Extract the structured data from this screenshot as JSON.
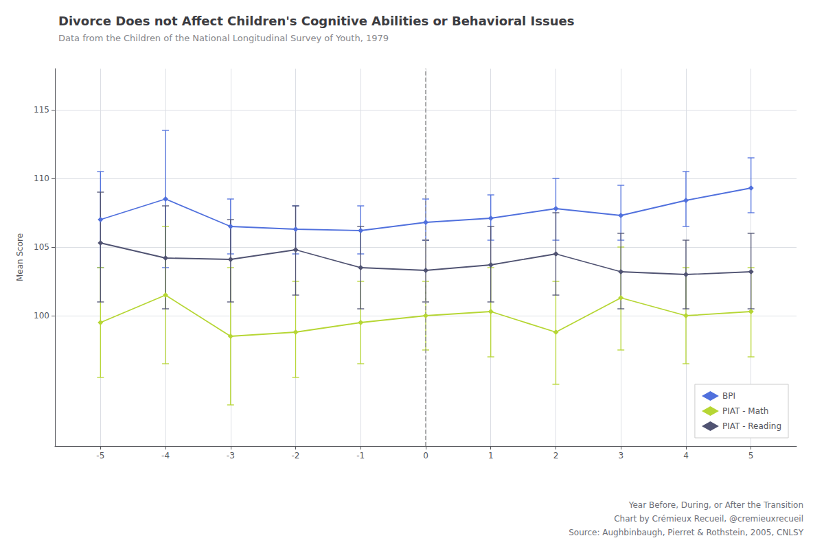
{
  "chart_data": {
    "type": "line",
    "title": "Divorce Does not Affect Children's Cognitive Abilities or Behavioral Issues",
    "subtitle": "Data from the Children of the National Longitudinal Survey of Youth, 1979",
    "ylabel": "Mean Score",
    "annotations": [
      "Year Before, During, or After the Transition",
      "Chart by Crémieux Recueil, @cremieuxrecueil",
      "Source: Aughbinbaugh, Pierret & Rothstein, 2005, CNLSY"
    ],
    "x": [
      -5,
      -4,
      -3,
      -2,
      -1,
      0,
      1,
      2,
      3,
      4,
      5
    ],
    "series": [
      {
        "name": "BPI",
        "values": [
          107.0,
          108.5,
          106.5,
          106.3,
          106.2,
          106.8,
          107.1,
          107.8,
          107.3,
          108.4,
          109.3
        ],
        "lo": [
          103.5,
          103.5,
          104.5,
          104.5,
          104.5,
          105.5,
          105.5,
          105.5,
          105.5,
          106.5,
          107.5
        ],
        "hi": [
          110.5,
          113.5,
          108.5,
          108.0,
          108.0,
          108.5,
          108.8,
          110.0,
          109.5,
          110.5,
          111.5
        ]
      },
      {
        "name": "PIAT - Math",
        "values": [
          99.5,
          101.5,
          98.5,
          98.8,
          99.5,
          100.0,
          100.3,
          98.8,
          101.3,
          100.0,
          100.3
        ],
        "lo": [
          95.5,
          96.5,
          93.5,
          95.5,
          96.5,
          97.5,
          97.0,
          95.0,
          97.5,
          96.5,
          97.0
        ],
        "hi": [
          103.5,
          106.5,
          103.5,
          102.5,
          102.5,
          102.5,
          103.5,
          102.5,
          105.0,
          103.5,
          103.5
        ]
      },
      {
        "name": "PIAT - Reading",
        "values": [
          105.3,
          104.2,
          104.1,
          104.8,
          103.5,
          103.3,
          103.7,
          104.5,
          103.2,
          103.0,
          103.2
        ],
        "lo": [
          101.0,
          100.5,
          101.0,
          101.5,
          100.5,
          101.0,
          101.0,
          101.5,
          100.5,
          100.5,
          100.5
        ],
        "hi": [
          109.0,
          108.0,
          107.0,
          108.0,
          106.5,
          105.5,
          106.5,
          107.5,
          106.0,
          105.5,
          106.0
        ]
      }
    ],
    "reference_lines": [
      {
        "x": 0,
        "line_style": "dashed",
        "color": "#909090"
      }
    ],
    "marker": "diamond",
    "line_style": "solid",
    "xlim": [
      -5.7,
      5.7
    ],
    "xticks": [
      -5,
      -4,
      -3,
      -2,
      -1,
      0,
      1,
      2,
      3,
      4,
      5
    ],
    "ylim": [
      90.5,
      118.0
    ],
    "yticks": [
      100,
      105,
      110,
      115
    ],
    "grid": true,
    "legend": "lower right"
  }
}
